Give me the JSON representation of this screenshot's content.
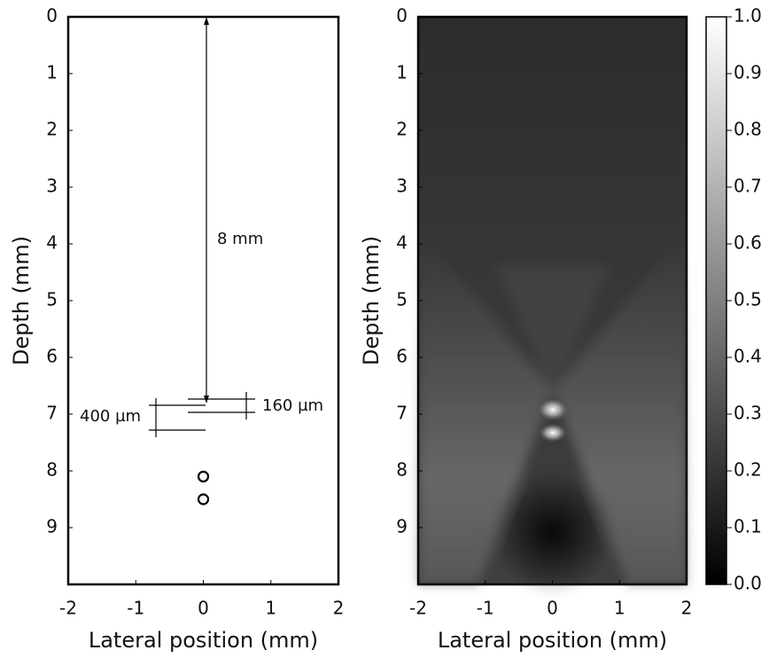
{
  "chart_data": [
    {
      "type": "scatter",
      "x": [
        0,
        0
      ],
      "y": [
        8.1,
        8.5
      ],
      "color": "#000000",
      "xlabel": "Lateral position (mm)",
      "ylabel": "Depth (mm)",
      "xlim": [
        -2,
        2
      ],
      "ylim": [
        0,
        10
      ],
      "y_inverted": true,
      "xticks": [
        -2,
        -1,
        0,
        1,
        2
      ],
      "yticks": [
        0,
        1,
        2,
        3,
        4,
        5,
        6,
        7,
        8,
        9
      ],
      "annotations": [
        "8 mm",
        "160 µm",
        "400 µm"
      ]
    },
    {
      "type": "heatmap",
      "colormap": "gray",
      "xlabel": "Lateral position (mm)",
      "ylabel": "Depth (mm)",
      "xlim": [
        -2,
        2
      ],
      "ylim": [
        0,
        10
      ],
      "y_inverted": true,
      "xticks": [
        -2,
        -1,
        0,
        1,
        2
      ],
      "yticks": [
        0,
        1,
        2,
        3,
        4,
        5,
        6,
        7,
        8,
        9
      ],
      "clim": [
        0,
        1
      ],
      "cticks": [
        {
          "value": 0,
          "label": "0.0"
        },
        0.1,
        0.2,
        0.3,
        0.4,
        0.5,
        0.6,
        0.7,
        0.8,
        0.9,
        {
          "value": 1,
          "label": "1.0"
        }
      ]
    }
  ]
}
